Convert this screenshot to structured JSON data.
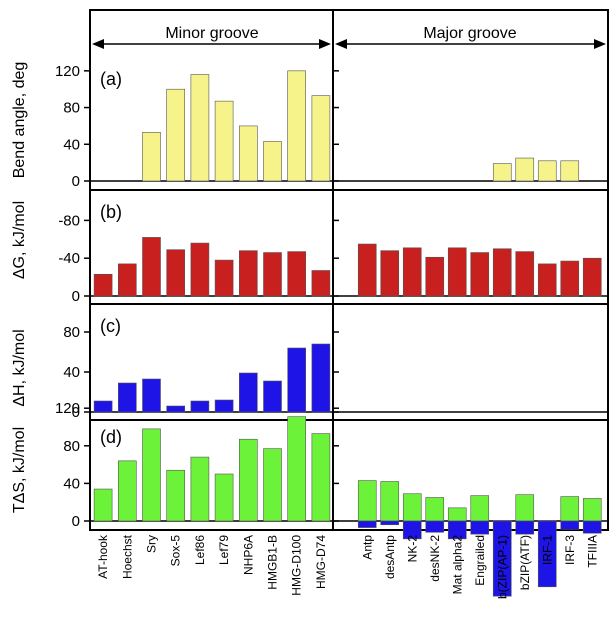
{
  "groups": {
    "minor": "Minor groove",
    "major": "Major groove"
  },
  "categories_minor": [
    "AT-hook",
    "Hoechst",
    "Sry",
    "Sox-5",
    "Lef86",
    "Lef79",
    "NHP6A",
    "HMGB1-B",
    "HMG-D100",
    "HMG-D74"
  ],
  "categories_major": [
    "Antp",
    "desAntp",
    "NK-2",
    "desNK-2",
    "Mat alpha2",
    "Engrailed",
    "b(ZIP(AP-1)",
    "bZIP(ATF)",
    "IRF-1",
    "IRF-3",
    "TFIIIA"
  ],
  "colors": {
    "bend": "#f5f38a",
    "dg": "#c8201e",
    "dh": "#1e14e6",
    "tds_pos": "#6df23a",
    "tds_neg_in_major": "#1e14e6"
  },
  "chart_data": [
    {
      "type": "bar",
      "panel": "(a)",
      "ylabel": "Bend angle, deg",
      "yticks": [
        "0",
        "40",
        "80",
        "120"
      ],
      "ylim": [
        0,
        150
      ],
      "minor_values": [
        null,
        null,
        53,
        100,
        116,
        87,
        60,
        43,
        120,
        93
      ],
      "major_values": [
        null,
        null,
        null,
        null,
        null,
        null,
        19,
        25,
        22,
        22,
        null
      ]
    },
    {
      "type": "bar",
      "panel": "(b)",
      "ylabel": "ΔG, kJ/mol",
      "yticks": [
        "0",
        "-40",
        "-80"
      ],
      "ylim": [
        0,
        -100
      ],
      "minor_values": [
        -23,
        -34,
        -62,
        -49,
        -56,
        -38,
        -48,
        -46,
        -47,
        -27
      ],
      "major_values": [
        -55,
        -48,
        -51,
        -41,
        -51,
        -46,
        -50,
        -47,
        -34,
        -37,
        -40
      ]
    },
    {
      "type": "bar",
      "panel": "(c)",
      "ylabel": "ΔH, kJ/mol",
      "yticks": [
        "0",
        "40",
        "80"
      ],
      "ylim": [
        0,
        105
      ],
      "minor_values": [
        11,
        29,
        33,
        6,
        11,
        12,
        39,
        31,
        64,
        68
      ],
      "major_values": []
    },
    {
      "type": "bar",
      "panel": "(d)",
      "ylabel": "TΔS, kJ/mol",
      "yticks": [
        "0",
        "40",
        "80",
        "120"
      ],
      "ylim": [
        0,
        140
      ],
      "minor_values": [
        34,
        64,
        98,
        54,
        68,
        50,
        87,
        77,
        111,
        93
      ],
      "major_values": [
        43,
        42,
        29,
        25,
        14,
        27,
        -17,
        28,
        -13,
        26,
        24
      ],
      "major_dh_values": [
        -7,
        -4,
        -19,
        -12,
        -19,
        -14,
        -80,
        -14,
        -70,
        -9,
        -13
      ]
    }
  ]
}
